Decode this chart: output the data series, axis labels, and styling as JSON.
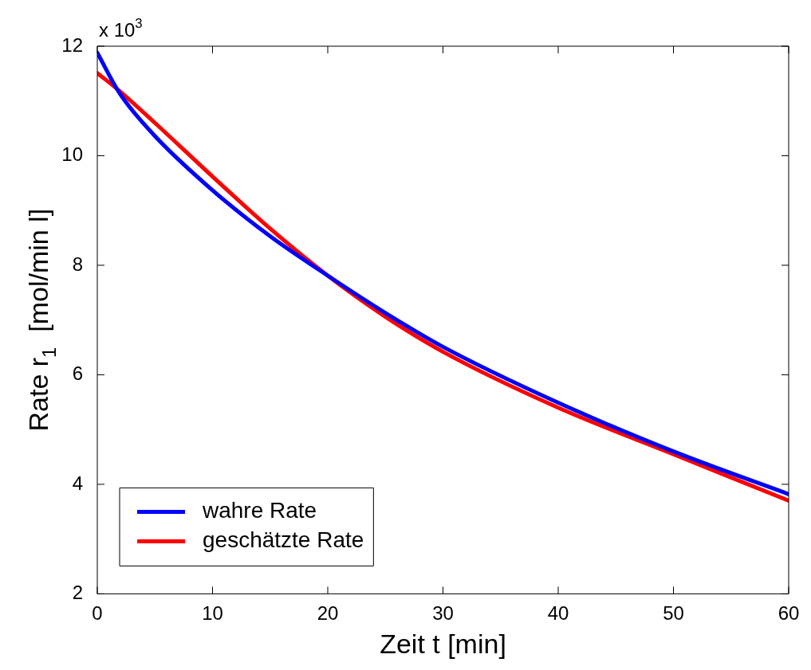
{
  "chart_data": {
    "type": "line",
    "xlabel": "Zeit t [min]",
    "ylabel": "Rate r$_{1}$  [mol/min l]",
    "annotations": [
      "x 10$^{3}$"
    ],
    "xlim": [
      0,
      60
    ],
    "xticks": [
      0,
      10,
      20,
      30,
      40,
      50,
      60
    ],
    "ylim": [
      2,
      12
    ],
    "yticks": [
      2,
      4,
      6,
      8,
      10,
      12
    ],
    "legend": "bottom left",
    "marker": "none",
    "line_style": "solid",
    "series": [
      {
        "name": "wahre Rate",
        "color": "#0000ff",
        "x": [
          0,
          2,
          5,
          10,
          15,
          20,
          25,
          30,
          40,
          50,
          60
        ],
        "values": [
          11.88,
          11.12,
          10.36,
          9.37,
          8.53,
          7.81,
          7.13,
          6.51,
          5.49,
          4.6,
          3.82
        ]
      },
      {
        "name": "geschätzte Rate",
        "color": "#ff0000",
        "x": [
          0,
          2,
          5,
          10,
          15,
          20,
          25,
          30,
          40,
          50,
          60
        ],
        "values": [
          11.51,
          11.17,
          10.6,
          9.62,
          8.67,
          7.81,
          7.06,
          6.42,
          5.4,
          4.55,
          3.7
        ]
      }
    ]
  }
}
